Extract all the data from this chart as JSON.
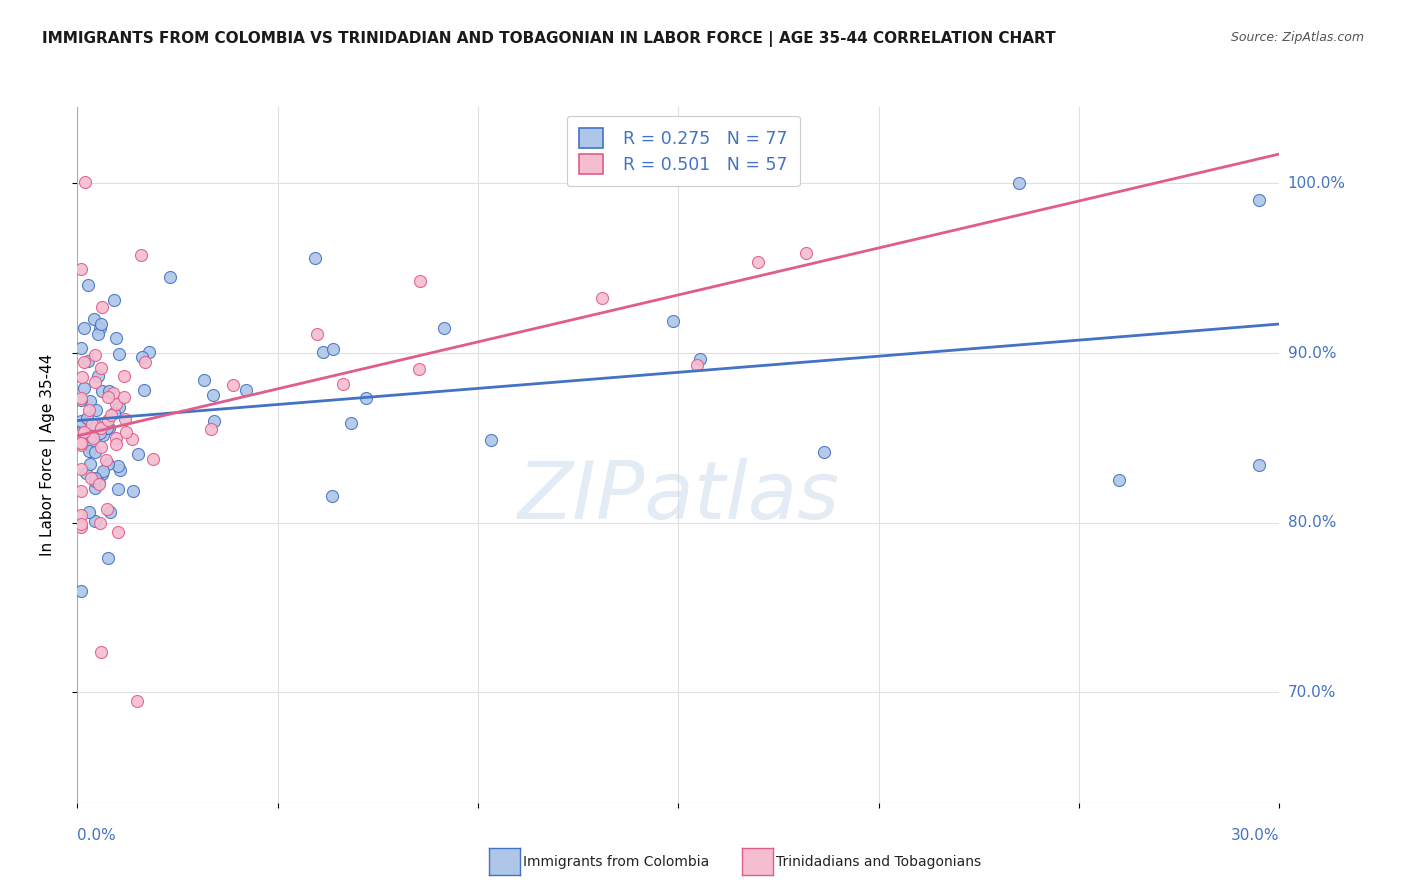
{
  "title": "IMMIGRANTS FROM COLOMBIA VS TRINIDADIAN AND TOBAGONIAN IN LABOR FORCE | AGE 35-44 CORRELATION CHART",
  "source": "Source: ZipAtlas.com",
  "ylabel": "In Labor Force | Age 35-44",
  "colombia_R": 0.275,
  "colombia_N": 77,
  "trinidad_R": 0.501,
  "trinidad_N": 57,
  "colombia_color": "#aec6e8",
  "colombia_edge_color": "#4472c4",
  "trinidad_color": "#f5bdd0",
  "trinidad_edge_color": "#e05c8a",
  "watermark": "ZIPatlas",
  "xlim": [
    0.0,
    0.3
  ],
  "ylim": [
    0.635,
    1.045
  ],
  "ytick_vals": [
    0.7,
    0.8,
    0.9,
    1.0
  ],
  "ytick_labels": [
    "70.0%",
    "80.0%",
    "90.0%",
    "100.0%"
  ],
  "xtick_vals": [
    0.0,
    0.05,
    0.1,
    0.15,
    0.2,
    0.25,
    0.3
  ],
  "grid_color": "#e0e0e0",
  "regression_color_colombia": "#4472c4",
  "regression_color_trinidad": "#e05c8a",
  "tick_color": "#4472c4",
  "axis_label_color": "#4472c4"
}
